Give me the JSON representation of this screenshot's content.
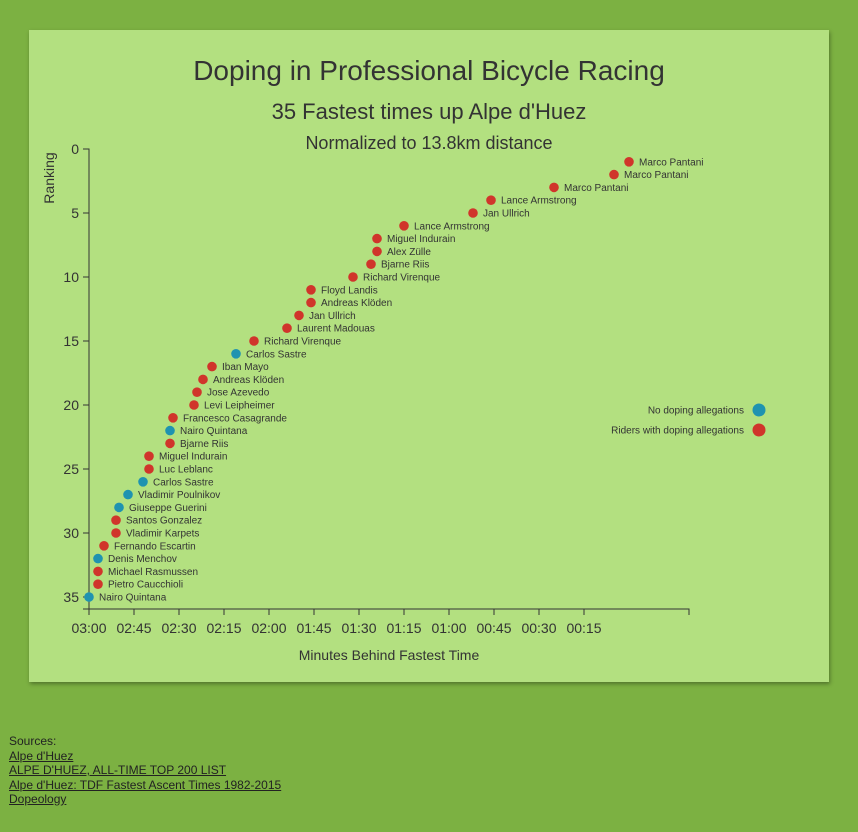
{
  "chart_data": {
    "type": "scatter",
    "title": "Doping in Professional Bicycle Racing",
    "subtitle": "35 Fastest times up Alpe d'Huez",
    "subsubtitle": "Normalized to 13.8km distance",
    "xlabel": "Minutes Behind Fastest Time",
    "ylabel": "Ranking",
    "x_unit": "seconds behind fastest time",
    "xlim": [
      180,
      -20
    ],
    "ylim": [
      0,
      35
    ],
    "x_ticks": [
      {
        "value": 180,
        "label": "03:00"
      },
      {
        "value": 165,
        "label": "02:45"
      },
      {
        "value": 150,
        "label": "02:30"
      },
      {
        "value": 135,
        "label": "02:15"
      },
      {
        "value": 120,
        "label": "02:00"
      },
      {
        "value": 105,
        "label": "01:45"
      },
      {
        "value": 90,
        "label": "01:30"
      },
      {
        "value": 75,
        "label": "01:15"
      },
      {
        "value": 60,
        "label": "01:00"
      },
      {
        "value": 45,
        "label": "00:45"
      },
      {
        "value": 30,
        "label": "00:30"
      },
      {
        "value": 15,
        "label": "00:15"
      }
    ],
    "y_ticks": [
      0,
      5,
      10,
      15,
      20,
      25,
      30,
      35
    ],
    "legend": {
      "placement": "right",
      "items": [
        {
          "label": "No doping allegations",
          "color": "#1f93b0"
        },
        {
          "label": "Riders with doping allegations",
          "color": "#d0352b"
        }
      ]
    },
    "colors": {
      "doping": "#d0352b",
      "clean": "#1f93b0"
    },
    "points": [
      {
        "rank": 1,
        "name": "Marco Pantani",
        "seconds": 0,
        "doping": true
      },
      {
        "rank": 2,
        "name": "Marco Pantani",
        "seconds": 5,
        "doping": true
      },
      {
        "rank": 3,
        "name": "Marco Pantani",
        "seconds": 25,
        "doping": true
      },
      {
        "rank": 4,
        "name": "Lance Armstrong",
        "seconds": 46,
        "doping": true
      },
      {
        "rank": 5,
        "name": "Jan Ullrich",
        "seconds": 52,
        "doping": true
      },
      {
        "rank": 6,
        "name": "Lance Armstrong",
        "seconds": 75,
        "doping": true
      },
      {
        "rank": 7,
        "name": "Miguel Indurain",
        "seconds": 84,
        "doping": true
      },
      {
        "rank": 8,
        "name": "Alex Zülle",
        "seconds": 84,
        "doping": true
      },
      {
        "rank": 9,
        "name": "Bjarne Riis",
        "seconds": 86,
        "doping": true
      },
      {
        "rank": 10,
        "name": "Richard Virenque",
        "seconds": 92,
        "doping": true
      },
      {
        "rank": 11,
        "name": "Floyd Landis",
        "seconds": 106,
        "doping": true
      },
      {
        "rank": 12,
        "name": "Andreas Klöden",
        "seconds": 106,
        "doping": true
      },
      {
        "rank": 13,
        "name": "Jan Ullrich",
        "seconds": 110,
        "doping": true
      },
      {
        "rank": 14,
        "name": "Laurent Madouas",
        "seconds": 114,
        "doping": true
      },
      {
        "rank": 15,
        "name": "Richard Virenque",
        "seconds": 125,
        "doping": true
      },
      {
        "rank": 16,
        "name": "Carlos Sastre",
        "seconds": 131,
        "doping": false
      },
      {
        "rank": 17,
        "name": "Iban Mayo",
        "seconds": 139,
        "doping": true
      },
      {
        "rank": 18,
        "name": "Andreas Klöden",
        "seconds": 142,
        "doping": true
      },
      {
        "rank": 19,
        "name": "Jose Azevedo",
        "seconds": 144,
        "doping": true
      },
      {
        "rank": 20,
        "name": "Levi Leipheimer",
        "seconds": 145,
        "doping": true
      },
      {
        "rank": 21,
        "name": "Francesco Casagrande",
        "seconds": 152,
        "doping": true
      },
      {
        "rank": 22,
        "name": "Nairo Quintana",
        "seconds": 153,
        "doping": false
      },
      {
        "rank": 23,
        "name": "Bjarne Riis",
        "seconds": 153,
        "doping": true
      },
      {
        "rank": 24,
        "name": "Miguel Indurain",
        "seconds": 160,
        "doping": true
      },
      {
        "rank": 25,
        "name": "Luc Leblanc",
        "seconds": 160,
        "doping": true
      },
      {
        "rank": 26,
        "name": "Carlos Sastre",
        "seconds": 162,
        "doping": false
      },
      {
        "rank": 27,
        "name": "Vladimir Poulnikov",
        "seconds": 167,
        "doping": false
      },
      {
        "rank": 28,
        "name": "Giuseppe Guerini",
        "seconds": 170,
        "doping": false
      },
      {
        "rank": 29,
        "name": "Santos Gonzalez",
        "seconds": 171,
        "doping": true
      },
      {
        "rank": 30,
        "name": "Vladimir Karpets",
        "seconds": 171,
        "doping": true
      },
      {
        "rank": 31,
        "name": "Fernando Escartin",
        "seconds": 175,
        "doping": true
      },
      {
        "rank": 32,
        "name": "Denis Menchov",
        "seconds": 177,
        "doping": false
      },
      {
        "rank": 33,
        "name": "Michael Rasmussen",
        "seconds": 177,
        "doping": true
      },
      {
        "rank": 34,
        "name": "Pietro Caucchioli",
        "seconds": 177,
        "doping": true
      },
      {
        "rank": 35,
        "name": "Nairo Quintana",
        "seconds": 180,
        "doping": false
      }
    ]
  },
  "sources": {
    "heading": "Sources:",
    "links": [
      "Alpe d'Huez",
      "ALPE D'HUEZ, ALL-TIME TOP 200 LIST",
      "Alpe d'Huez: TDF Fastest Ascent Times 1982-2015",
      "Dopeology"
    ]
  }
}
